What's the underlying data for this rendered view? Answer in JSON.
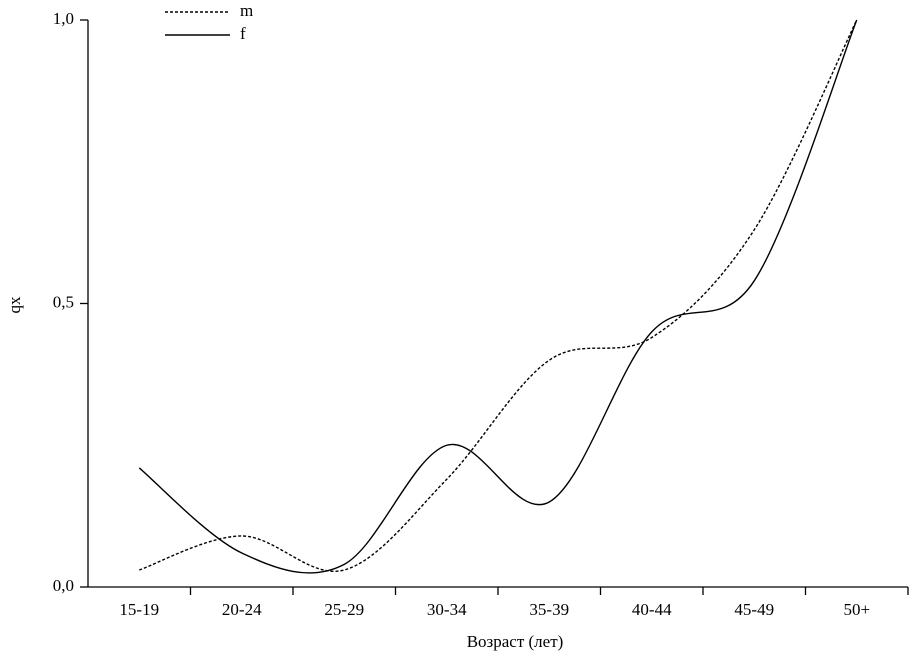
{
  "chart_data": {
    "type": "line",
    "x_label": "Возраст (лет)",
    "y_label": "qx",
    "categories": [
      "15-19",
      "20-24",
      "25-29",
      "30-34",
      "35-39",
      "40-44",
      "45-49",
      "50+"
    ],
    "series": [
      {
        "name": "m",
        "color": "#000000",
        "dash": "dotted",
        "values": [
          0.03,
          0.09,
          0.03,
          0.19,
          0.4,
          0.44,
          0.63,
          1.0
        ]
      },
      {
        "name": "f",
        "color": "#000000",
        "dash": "solid",
        "values": [
          0.21,
          0.06,
          0.04,
          0.25,
          0.15,
          0.45,
          0.54,
          1.0
        ]
      }
    ],
    "ylim": [
      0,
      1
    ],
    "yticks": [
      {
        "value": 0,
        "label": "0,0"
      },
      {
        "value": 0.5,
        "label": "0,5"
      },
      {
        "value": 1,
        "label": "1,0"
      }
    ],
    "smooth": true,
    "legend": "top-left"
  }
}
